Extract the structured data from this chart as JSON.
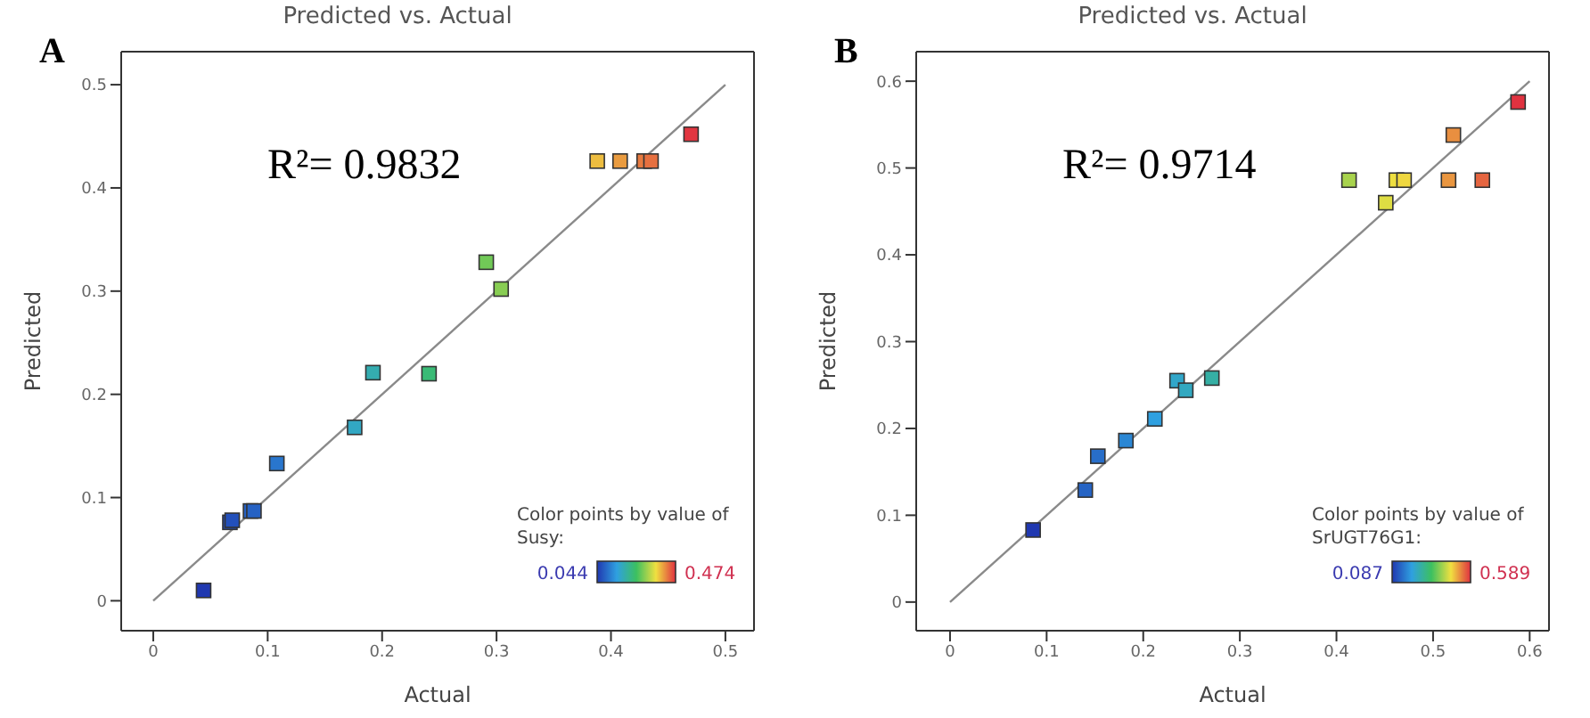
{
  "chart_data": [
    {
      "type": "scatter",
      "title": "Predicted vs. Actual",
      "xlabel": "Actual",
      "ylabel": "Predicted",
      "clabel": "Color points by value of Susy:",
      "annotations": [
        "A",
        "R²= 0.9832",
        "0.044",
        "0.474"
      ],
      "xlim": [
        -0.028,
        0.525
      ],
      "ylim": [
        -0.029,
        0.532
      ],
      "xticks": [
        0,
        0.1,
        0.2,
        0.3,
        0.4,
        0.5
      ],
      "yticks": [
        0,
        0.1,
        0.2,
        0.3,
        0.4,
        0.5
      ],
      "series": [
        {
          "marker": "square",
          "x": [
            0.044,
            0.067,
            0.069,
            0.085,
            0.088,
            0.108,
            0.176,
            0.192,
            0.241,
            0.291,
            0.304,
            0.388,
            0.408,
            0.429,
            0.435,
            0.47
          ],
          "values": [
            0.01,
            0.076,
            0.078,
            0.087,
            0.087,
            0.133,
            0.168,
            0.221,
            0.22,
            0.328,
            0.302,
            0.426,
            0.426,
            0.426,
            0.426,
            0.452
          ],
          "colors": [
            "#2038b0",
            "#234eba",
            "#2350bb",
            "#2660c2",
            "#2662c4",
            "#2976cd",
            "#32a7c3",
            "#34acb0",
            "#3abb76",
            "#71c957",
            "#88cd53",
            "#edbd40",
            "#ea9c40",
            "#e77a40",
            "#e67040",
            "#e13640"
          ]
        },
        {
          "type": "line",
          "marker": "none",
          "color": "#8a8a8a",
          "x": [
            0,
            0.5
          ],
          "values": [
            0,
            0.5
          ]
        }
      ]
    },
    {
      "type": "scatter",
      "title": "Predicted vs. Actual",
      "xlabel": "Actual",
      "ylabel": "Predicted",
      "clabel": "Color points by value of SrUGT76G1:",
      "annotations": [
        "B",
        "R²= 0.9714",
        "0.087",
        "0.589"
      ],
      "xlim": [
        -0.035,
        0.62
      ],
      "ylim": [
        -0.033,
        0.634
      ],
      "xticks": [
        0,
        0.1,
        0.2,
        0.3,
        0.4,
        0.5,
        0.6
      ],
      "yticks": [
        0,
        0.1,
        0.2,
        0.3,
        0.4,
        0.5,
        0.6
      ],
      "series": [
        {
          "marker": "square",
          "x": [
            0.086,
            0.14,
            0.153,
            0.182,
            0.212,
            0.235,
            0.244,
            0.271,
            0.413,
            0.451,
            0.462,
            0.47,
            0.516,
            0.521,
            0.551,
            0.588
          ],
          "values": [
            0.083,
            0.129,
            0.168,
            0.186,
            0.211,
            0.255,
            0.244,
            0.258,
            0.486,
            0.46,
            0.486,
            0.486,
            0.486,
            0.538,
            0.486,
            0.576
          ],
          "colors": [
            "#2038b0",
            "#2664c4",
            "#286ec9",
            "#2b87d4",
            "#2fa0e0",
            "#31a6c9",
            "#32a8c0",
            "#35afa4",
            "#a8d34d",
            "#dedd43",
            "#eedf40",
            "#efd740",
            "#e99640",
            "#e98f40",
            "#e56540",
            "#e03240"
          ]
        },
        {
          "type": "line",
          "marker": "none",
          "color": "#8a8a8a",
          "x": [
            0,
            0.6
          ],
          "values": [
            0,
            0.6
          ]
        }
      ]
    }
  ]
}
